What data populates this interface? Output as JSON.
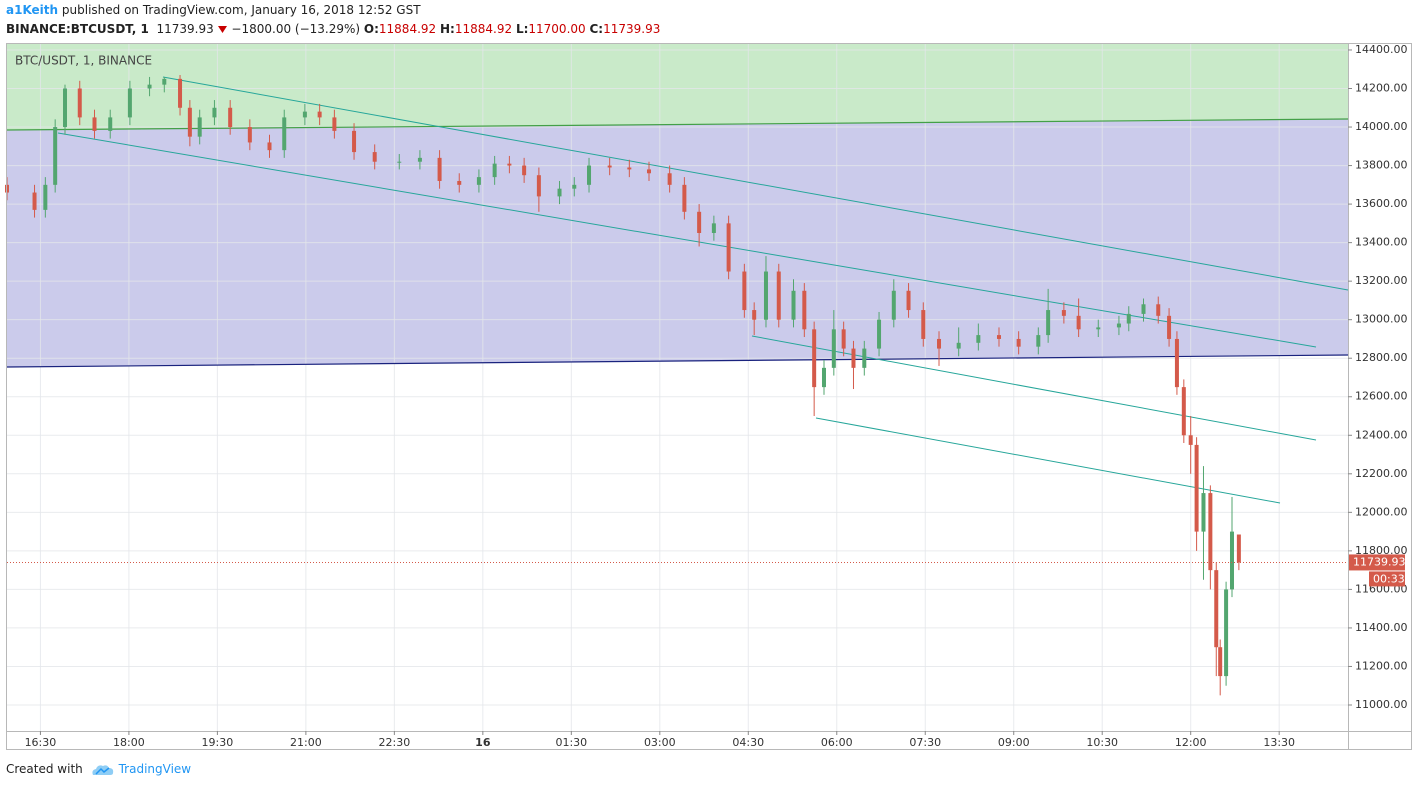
{
  "header": {
    "author": "a1Keith",
    "published": "published on TradingView.com, January 16, 2018 12:52 GST",
    "symbol": "BINANCE:BTCUSDT, 1",
    "last": "11739.93",
    "change": "−1800.00 (−13.29%)",
    "open_label": "O:",
    "open": "11884.92",
    "high_label": "H:",
    "high": "11884.92",
    "low_label": "L:",
    "low": "11700.00",
    "close_label": "C:",
    "close": "11739.93"
  },
  "footer": {
    "created": "Created with",
    "brand": "TradingView"
  },
  "chart_data": {
    "type": "candlestick",
    "legend": "BTC/USDT, 1, BINANCE",
    "countdown": "00:33",
    "up_color": "#53a66f",
    "down_color": "#d45a4a",
    "grid": true,
    "x": [
      956,
      984,
      995,
      1005,
      1015,
      1030,
      1045,
      1061,
      1081,
      1101,
      1116,
      1132,
      1142,
      1152,
      1167,
      1183,
      1203,
      1223,
      1238,
      1259,
      1274,
      1289,
      1309,
      1330,
      1355,
      1376,
      1396,
      1416,
      1436,
      1452,
      1467,
      1482,
      1497,
      1518,
      1533,
      1548,
      1569,
      1589,
      1609,
      1630,
      1645,
      1660,
      1675,
      1690,
      1706,
      1716,
      1728,
      1741,
      1756,
      1767,
      1777,
      1787,
      1797,
      1807,
      1817,
      1828,
      1843,
      1858,
      1873,
      1888,
      1904,
      1924,
      1944,
      1965,
      1985,
      2005,
      2015,
      2031,
      2046,
      2066,
      2087,
      2097,
      2112,
      2127,
      2138,
      2146,
      2153,
      2160,
      2166,
      2173,
      2180,
      2186,
      2190,
      2196,
      2202,
      2209
    ],
    "open": [
      13700,
      13660,
      13570,
      13700,
      14000,
      14200,
      14050,
      13980,
      14050,
      14200,
      14220,
      14250,
      14100,
      13950,
      14050,
      14100,
      14000,
      13920,
      13880,
      14050,
      14080,
      14050,
      13980,
      13870,
      13820,
      13820,
      13840,
      13720,
      13700,
      13740,
      13810,
      13800,
      13750,
      13640,
      13680,
      13700,
      13800,
      13790,
      13780,
      13760,
      13700,
      13560,
      13450,
      13500,
      13250,
      13050,
      13000,
      13250,
      13000,
      13150,
      12950,
      12650,
      12750,
      12950,
      12850,
      12750,
      12850,
      13000,
      13150,
      13050,
      12900,
      12850,
      12880,
      12920,
      12900,
      12860,
      12920,
      13050,
      13020,
      12950,
      12960,
      12980,
      13030,
      13080,
      13020,
      12900,
      12650,
      12400,
      12350,
      11900,
      12100,
      11700,
      11300,
      11150,
      11600,
      11884.92
    ],
    "high": [
      13740,
      13700,
      13740,
      14040,
      14220,
      14240,
      14090,
      14090,
      14240,
      14260,
      14260,
      14270,
      14140,
      14090,
      14140,
      14140,
      14040,
      13960,
      14090,
      14120,
      14120,
      14090,
      14020,
      13910,
      13860,
      13880,
      13880,
      13760,
      13780,
      13850,
      13850,
      13840,
      13790,
      13720,
      13740,
      13840,
      13840,
      13830,
      13820,
      13800,
      13740,
      13600,
      13540,
      13540,
      13290,
      13090,
      13330,
      13290,
      13210,
      13190,
      12990,
      12790,
      13050,
      12990,
      12890,
      12890,
      13040,
      13210,
      13190,
      13090,
      12940,
      12960,
      12980,
      12960,
      12940,
      12960,
      13160,
      13090,
      13110,
      13000,
      13020,
      13070,
      13110,
      13120,
      13060,
      12940,
      12690,
      12500,
      12390,
      12240,
      12140,
      11740,
      11340,
      11640,
      12080,
      11884.92
    ],
    "low": [
      13620,
      13530,
      13530,
      13660,
      13960,
      14010,
      13940,
      13940,
      14010,
      14160,
      14180,
      14060,
      13900,
      13910,
      14010,
      13960,
      13880,
      13840,
      13840,
      14010,
      14010,
      13940,
      13830,
      13780,
      13780,
      13780,
      13680,
      13660,
      13660,
      13700,
      13760,
      13710,
      13560,
      13600,
      13640,
      13660,
      13750,
      13740,
      13720,
      13660,
      13520,
      13380,
      13410,
      13210,
      13010,
      12920,
      12960,
      12960,
      12960,
      12910,
      12500,
      12610,
      12710,
      12810,
      12640,
      12710,
      12810,
      12960,
      13010,
      12860,
      12760,
      12810,
      12840,
      12860,
      12820,
      12820,
      12880,
      12980,
      12910,
      12910,
      12920,
      12940,
      12990,
      12980,
      12860,
      12610,
      12360,
      12200,
      11800,
      11650,
      11600,
      11150,
      11050,
      11100,
      11560,
      11700
    ],
    "close": [
      13660,
      13570,
      13700,
      14000,
      14200,
      14050,
      13980,
      14050,
      14200,
      14220,
      14250,
      14100,
      13950,
      14050,
      14100,
      14000,
      13920,
      13880,
      14050,
      14080,
      14050,
      13980,
      13870,
      13820,
      13820,
      13840,
      13720,
      13700,
      13740,
      13810,
      13800,
      13750,
      13640,
      13680,
      13700,
      13800,
      13790,
      13780,
      13760,
      13700,
      13560,
      13450,
      13500,
      13250,
      13050,
      13000,
      13250,
      13000,
      13150,
      12950,
      12650,
      12750,
      12950,
      12850,
      12750,
      12850,
      13000,
      13150,
      13050,
      12900,
      12850,
      12880,
      12920,
      12900,
      12860,
      12920,
      13050,
      13020,
      12950,
      12960,
      12980,
      13030,
      13080,
      13020,
      12900,
      12650,
      12400,
      12350,
      11900,
      12100,
      11700,
      11300,
      11150,
      11600,
      11900,
      11739.93
    ],
    "xlim": [
      956,
      2320
    ],
    "xticks": [
      {
        "value": 990,
        "label": "16:30"
      },
      {
        "value": 1080,
        "label": "18:00"
      },
      {
        "value": 1170,
        "label": "19:30"
      },
      {
        "value": 1260,
        "label": "21:00"
      },
      {
        "value": 1350,
        "label": "22:30"
      },
      {
        "value": 1440,
        "label": "16"
      },
      {
        "value": 1530,
        "label": "01:30"
      },
      {
        "value": 1620,
        "label": "03:00"
      },
      {
        "value": 1710,
        "label": "04:30"
      },
      {
        "value": 1800,
        "label": "06:00"
      },
      {
        "value": 1890,
        "label": "07:30"
      },
      {
        "value": 1980,
        "label": "09:00"
      },
      {
        "value": 2070,
        "label": "10:30"
      },
      {
        "value": 2160,
        "label": "12:00"
      },
      {
        "value": 2250,
        "label": "13:30"
      }
    ],
    "ylim": [
      10865,
      14431
    ],
    "yticks": [
      {
        "value": 11000,
        "label": "11000.00"
      },
      {
        "value": 11200,
        "label": "11200.00"
      },
      {
        "value": 11400,
        "label": "11400.00"
      },
      {
        "value": 11600,
        "label": "11600.00"
      },
      {
        "value": 11800,
        "label": "11800.00"
      },
      {
        "value": 12000,
        "label": "12000.00"
      },
      {
        "value": 12200,
        "label": "12200.00"
      },
      {
        "value": 12400,
        "label": "12400.00"
      },
      {
        "value": 12600,
        "label": "12600.00"
      },
      {
        "value": 12800,
        "label": "12800.00"
      },
      {
        "value": 13000,
        "label": "13000.00"
      },
      {
        "value": 13200,
        "label": "13200.00"
      },
      {
        "value": 13400,
        "label": "13400.00"
      },
      {
        "value": 13600,
        "label": "13600.00"
      },
      {
        "value": 13800,
        "label": "13800.00"
      },
      {
        "value": 14000,
        "label": "14000.00"
      },
      {
        "value": 14200,
        "label": "14200.00"
      },
      {
        "value": 14400,
        "label": "14400.00"
      }
    ]
  }
}
